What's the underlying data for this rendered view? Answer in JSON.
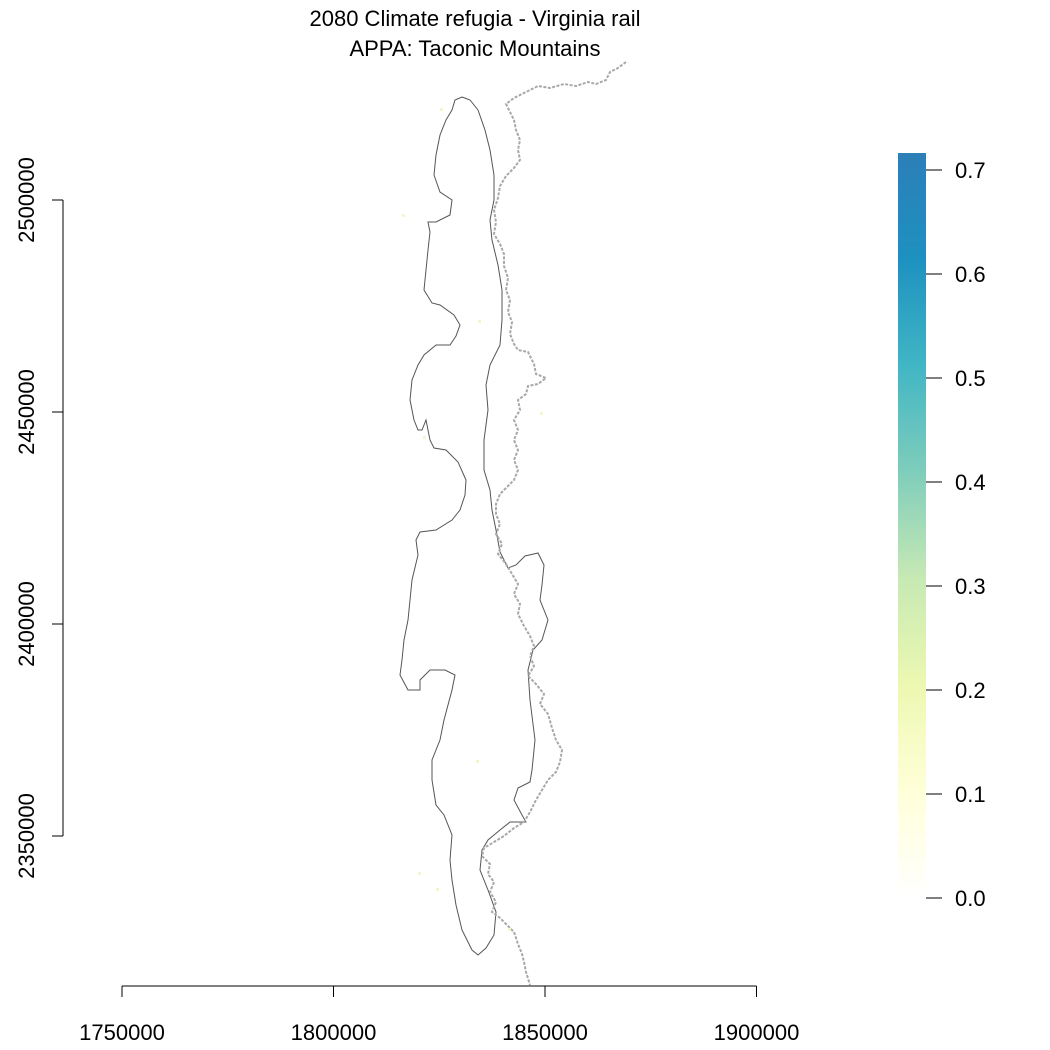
{
  "title": {
    "line1": "2080 Climate refugia - Virginia rail",
    "line2": "APPA: Taconic Mountains"
  },
  "map": {
    "x_axis": {
      "ticks": [
        "1750000",
        "1800000",
        "1850000",
        "1900000"
      ]
    },
    "y_axis": {
      "ticks": [
        "2350000",
        "2400000",
        "2450000",
        "2500000"
      ]
    },
    "layers": [
      "study-area-outline",
      "appalachian-trail"
    ],
    "colors": {
      "outline": "#555555",
      "trail": "#a8a8a8"
    }
  },
  "legend": {
    "ticks": [
      "0.0",
      "0.1",
      "0.2",
      "0.3",
      "0.4",
      "0.5",
      "0.6",
      "0.7"
    ],
    "colors": [
      "#ffffff",
      "#ffffd9",
      "#edf8b1",
      "#c7e9b4",
      "#7fcdbb",
      "#41b6c4",
      "#1d91c0",
      "#2c7fb8"
    ]
  }
}
